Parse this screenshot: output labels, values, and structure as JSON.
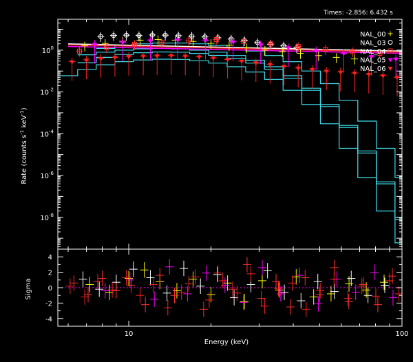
{
  "header": {
    "times_label": "Times: -2.856: 6.432 s"
  },
  "chart_data": [
    {
      "type": "scatter",
      "panel": "spectrum",
      "xlabel": "Energy (keV)",
      "ylabel_parts": {
        "main": "Rate (counts s",
        "sup1": "-1",
        "mid": " keV",
        "sup2": "-1",
        "end": ")"
      },
      "x_scale": "log",
      "y_scale": "log",
      "xlim": [
        5.5,
        100
      ],
      "ylim": [
        3e-10,
        30
      ],
      "x_ticks": [
        {
          "value": 10,
          "label": "10"
        },
        {
          "value": 100,
          "label": "100"
        }
      ],
      "y_ticks": [
        {
          "value": 1,
          "base": "10",
          "exp": "0"
        },
        {
          "value": 0.01,
          "base": "10",
          "exp": "-2"
        },
        {
          "value": 0.0001,
          "base": "10",
          "exp": "-4"
        },
        {
          "value": 1e-06,
          "base": "10",
          "exp": "-6"
        },
        {
          "value": 1e-08,
          "base": "10",
          "exp": "-8"
        }
      ],
      "legend_position": "top-right",
      "series": [
        {
          "name": "NAL_00",
          "color": "#ffff00",
          "marker": "plus",
          "points": [
            [
              6.9,
              1.6
            ],
            [
              8.2,
              2.1
            ],
            [
              9.5,
              2.7
            ],
            [
              11,
              3.0
            ],
            [
              12.8,
              3.2
            ],
            [
              14.8,
              3.0
            ],
            [
              17.2,
              2.6
            ],
            [
              20,
              2.1
            ],
            [
              23.3,
              1.7
            ],
            [
              27,
              1.3
            ],
            [
              31.5,
              1.0
            ],
            [
              36.5,
              0.85
            ],
            [
              42.5,
              0.7
            ],
            [
              49.5,
              0.55
            ],
            [
              57.5,
              0.45
            ],
            [
              67,
              0.38
            ]
          ]
        },
        {
          "name": "NAL_03",
          "color": "#ffffff",
          "marker": "circle",
          "points": [
            [
              7.9,
              4.5
            ],
            [
              8.8,
              5.0
            ],
            [
              9.8,
              5.2
            ],
            [
              10.9,
              5.0
            ],
            [
              12.2,
              5.3
            ],
            [
              13.6,
              5.2
            ],
            [
              15.2,
              4.9
            ],
            [
              17,
              4.7
            ],
            [
              19,
              4.3
            ],
            [
              21.2,
              3.9
            ],
            [
              23.7,
              3.4
            ],
            [
              26.5,
              2.9
            ],
            [
              29.6,
              2.3
            ],
            [
              33,
              1.9
            ],
            [
              36.9,
              1.6
            ],
            [
              41.2,
              1.3
            ]
          ]
        },
        {
          "name": "NAL_04",
          "color": "#ff3030",
          "marker": "square",
          "points": [
            [
              6.6,
              0.9
            ],
            [
              8.3,
              1.3
            ],
            [
              10.5,
              1.9
            ],
            [
              13.2,
              2.3
            ],
            [
              16.6,
              2.8
            ],
            [
              20.9,
              3.2
            ],
            [
              26.3,
              2.6
            ],
            [
              33.1,
              2.0
            ],
            [
              41.7,
              1.5
            ],
            [
              52.5,
              1.1
            ],
            [
              66,
              0.85
            ],
            [
              83,
              0.7
            ]
          ]
        },
        {
          "name": "NAL_05",
          "color": "#ff00ff",
          "marker": "triangle",
          "points": [
            [
              7.5,
              1.9
            ],
            [
              9.5,
              2.4
            ],
            [
              12,
              2.8
            ],
            [
              15.1,
              3.1
            ],
            [
              19.1,
              3.0
            ],
            [
              24.1,
              2.5
            ],
            [
              30.4,
              1.8
            ],
            [
              38.4,
              1.3
            ],
            [
              48.5,
              0.95
            ],
            [
              61.2,
              0.7
            ],
            [
              77.3,
              0.5
            ],
            [
              95,
              0.38
            ]
          ]
        },
        {
          "name": "NAL_06",
          "color": "#ff2020",
          "marker": "triangle",
          "points": [
            [
              6.2,
              0.28
            ],
            [
              7,
              0.34
            ],
            [
              7.9,
              0.4
            ],
            [
              8.9,
              0.45
            ],
            [
              10,
              0.5
            ],
            [
              11.3,
              0.52
            ],
            [
              12.7,
              0.54
            ],
            [
              14.3,
              0.55
            ],
            [
              16.1,
              0.52
            ],
            [
              18.1,
              0.48
            ],
            [
              20.4,
              0.42
            ],
            [
              23,
              0.36
            ],
            [
              25.9,
              0.3
            ],
            [
              29.2,
              0.25
            ],
            [
              32.9,
              0.21
            ],
            [
              37,
              0.17
            ],
            [
              41.7,
              0.14
            ],
            [
              47,
              0.12
            ],
            [
              52.9,
              0.1
            ],
            [
              59.6,
              0.09
            ],
            [
              67.1,
              0.08
            ],
            [
              75.6,
              0.07
            ],
            [
              85.2,
              0.06
            ],
            [
              96,
              0.05
            ]
          ]
        }
      ],
      "model_curves": [
        {
          "color": "#40e0f0",
          "x": [
            5.5,
            6.5,
            7.6,
            8.9,
            10.4,
            12.2,
            14.3,
            16.7,
            19.6,
            22.9,
            26.8,
            31.4,
            36.7,
            43,
            50.3,
            58.9,
            68.9,
            80.6,
            94.3,
            100
          ],
          "y": [
            0.06,
            0.12,
            0.2,
            0.28,
            0.34,
            0.37,
            0.36,
            0.31,
            0.24,
            0.16,
            0.09,
            0.04,
            0.012,
            0.0025,
            0.0003,
            2e-05,
            8e-07,
            2e-08,
            6e-10,
            4e-10
          ]
        },
        {
          "color": "#40e0f0",
          "x": [
            6.5,
            7.6,
            8.9,
            10.4,
            12.2,
            14.3,
            16.7,
            19.6,
            22.9,
            26.8,
            31.4,
            36.7,
            43,
            50.3,
            58.9,
            68.9,
            80.6,
            94.3,
            100
          ],
          "y": [
            0.6,
            0.8,
            1.0,
            1.15,
            1.2,
            1.15,
            1.0,
            0.8,
            0.55,
            0.33,
            0.16,
            0.06,
            0.015,
            0.0025,
            0.00025,
            1.5e-05,
            5e-07,
            1e-08,
            4e-09
          ]
        },
        {
          "color": "#40e0f0",
          "x": [
            6.5,
            7.6,
            8.9,
            10.4,
            12.2,
            14.3,
            16.7,
            19.6,
            22.9,
            26.8,
            31.4,
            36.7,
            43,
            50.3,
            58.9,
            68.9,
            80.6,
            94.3,
            100
          ],
          "y": [
            0.25,
            0.45,
            0.62,
            0.75,
            0.82,
            0.8,
            0.7,
            0.56,
            0.4,
            0.24,
            0.12,
            0.045,
            0.012,
            0.002,
            0.0002,
            1.2e-05,
            4e-07,
            8e-09,
            3e-09
          ]
        },
        {
          "color": "#40e0f0",
          "x": [
            7.6,
            8.9,
            10.4,
            12.2,
            14.3,
            16.7,
            19.6,
            22.9,
            26.8,
            31.4,
            36.7,
            43,
            50.3,
            58.9,
            68.9,
            80.6,
            94.3,
            100
          ],
          "y": [
            1.2,
            1.7,
            2.0,
            2.2,
            2.2,
            2.0,
            1.7,
            1.3,
            0.9,
            0.55,
            0.28,
            0.1,
            0.025,
            0.004,
            0.0004,
            2e-05,
            8e-07,
            8e-10
          ]
        }
      ],
      "horizontal_models": [
        {
          "color": "#ff2020",
          "y_start": 1.8,
          "y_end": 0.8
        },
        {
          "color": "#ff00ff",
          "y_start": 1.5,
          "y_end": 0.7
        },
        {
          "color": "#ffffff",
          "y_start": 2.0,
          "y_end": 0.9
        }
      ]
    },
    {
      "type": "scatter",
      "panel": "residuals",
      "ylabel": "Sigma",
      "x_scale": "log",
      "xlim": [
        5.5,
        100
      ],
      "ylim": [
        -5,
        5
      ],
      "y_ticks": [
        {
          "value": 4,
          "label": "4"
        },
        {
          "value": 2,
          "label": "2"
        },
        {
          "value": 0,
          "label": "0"
        },
        {
          "value": -2,
          "label": "-2"
        },
        {
          "value": -4,
          "label": "-4"
        }
      ],
      "zero_line_color": "#ff00ff",
      "series": [
        {
          "name": "NAL_00",
          "color": "#ffff00",
          "points": [
            [
              7.2,
              0.4
            ],
            [
              8.5,
              -0.6
            ],
            [
              10,
              1.2
            ],
            [
              11.4,
              2.3
            ],
            [
              13,
              0.8
            ],
            [
              15,
              -0.4
            ],
            [
              17.2,
              1.1
            ],
            [
              20,
              -0.9
            ],
            [
              23,
              0.6
            ],
            [
              26.5,
              -1.8
            ],
            [
              30.8,
              0.9
            ],
            [
              35.5,
              -0.3
            ],
            [
              41,
              1.4
            ],
            [
              47.5,
              -1.2
            ],
            [
              55,
              -0.8
            ],
            [
              64,
              0.5
            ],
            [
              74,
              -0.3
            ],
            [
              86,
              0.7
            ]
          ]
        },
        {
          "name": "NAL_03",
          "color": "#ffffff",
          "points": [
            [
              6.8,
              1.1
            ],
            [
              7.8,
              -0.2
            ],
            [
              9,
              0.7
            ],
            [
              10.4,
              2.4
            ],
            [
              12,
              1.3
            ],
            [
              13.8,
              -0.7
            ],
            [
              15.9,
              2.5
            ],
            [
              18.3,
              0.2
            ],
            [
              21.1,
              1.7
            ],
            [
              24.3,
              -1.3
            ],
            [
              28,
              0.4
            ],
            [
              32.2,
              2.2
            ],
            [
              37.1,
              -0.6
            ],
            [
              42.7,
              -1.7
            ],
            [
              49.2,
              0.8
            ],
            [
              56.6,
              -0.5
            ],
            [
              65.2,
              1.2
            ],
            [
              75.1,
              -1.0
            ],
            [
              86.5,
              0.3
            ]
          ]
        },
        {
          "name": "NAL_04",
          "color": "#ff3030",
          "points": [
            [
              6.3,
              0.6
            ],
            [
              7.1,
              -0.9
            ],
            [
              8,
              1.2
            ],
            [
              9,
              -0.4
            ],
            [
              10.2,
              0.3
            ],
            [
              11.5,
              -2.2
            ],
            [
              13,
              1.6
            ],
            [
              14.7,
              -1.0
            ],
            [
              16.6,
              0.5
            ],
            [
              18.8,
              -2.8
            ],
            [
              21.2,
              1.9
            ],
            [
              24,
              -0.2
            ],
            [
              27.1,
              3.0
            ],
            [
              30.6,
              -1.4
            ],
            [
              34.6,
              0.8
            ],
            [
              39.1,
              -2.5
            ],
            [
              44.2,
              1.3
            ],
            [
              50,
              -0.9
            ],
            [
              56.5,
              2.6
            ],
            [
              63.9,
              -1.8
            ],
            [
              72.2,
              0.4
            ],
            [
              81.6,
              -2.2
            ],
            [
              92.2,
              1.5
            ]
          ]
        },
        {
          "name": "NAL_05",
          "color": "#ff00ff",
          "points": [
            [
              8.2,
              -0.4
            ],
            [
              10.1,
              1.0
            ],
            [
              12.4,
              -1.5
            ],
            [
              14.1,
              2.7
            ],
            [
              16.4,
              -0.8
            ],
            [
              19.2,
              1.9
            ],
            [
              22.5,
              0.3
            ],
            [
              26.3,
              -1.9
            ],
            [
              30.8,
              2.6
            ],
            [
              36,
              -0.8
            ],
            [
              42.2,
              1.6
            ],
            [
              49.4,
              -2.1
            ],
            [
              57.8,
              1.1
            ],
            [
              67.7,
              -0.6
            ],
            [
              79.2,
              2.0
            ],
            [
              92.7,
              -1.3
            ]
          ]
        },
        {
          "name": "NAL_06",
          "color": "#ff2020",
          "points": [
            [
              6.1,
              0.2
            ],
            [
              6.9,
              -1.2
            ],
            [
              7.7,
              0.8
            ],
            [
              8.7,
              -0.3
            ],
            [
              9.8,
              1.3
            ],
            [
              11,
              -1.0
            ],
            [
              12.3,
              0.4
            ],
            [
              13.9,
              -2.6
            ],
            [
              15.6,
              -0.6
            ],
            [
              17.5,
              1.4
            ],
            [
              19.7,
              -1.6
            ],
            [
              22.1,
              0.9
            ],
            [
              24.9,
              -0.7
            ],
            [
              28,
              1.8
            ],
            [
              31.4,
              -2.4
            ],
            [
              35.3,
              -0.1
            ],
            [
              39.7,
              0.6
            ],
            [
              44.6,
              -2.8
            ],
            [
              50.2,
              -0.4
            ],
            [
              56.4,
              1.1
            ],
            [
              63.4,
              -1.4
            ],
            [
              71.3,
              0.2
            ],
            [
              80.2,
              -1.1
            ],
            [
              90.1,
              0.9
            ],
            [
              97.5,
              -0.8
            ]
          ]
        }
      ]
    }
  ]
}
